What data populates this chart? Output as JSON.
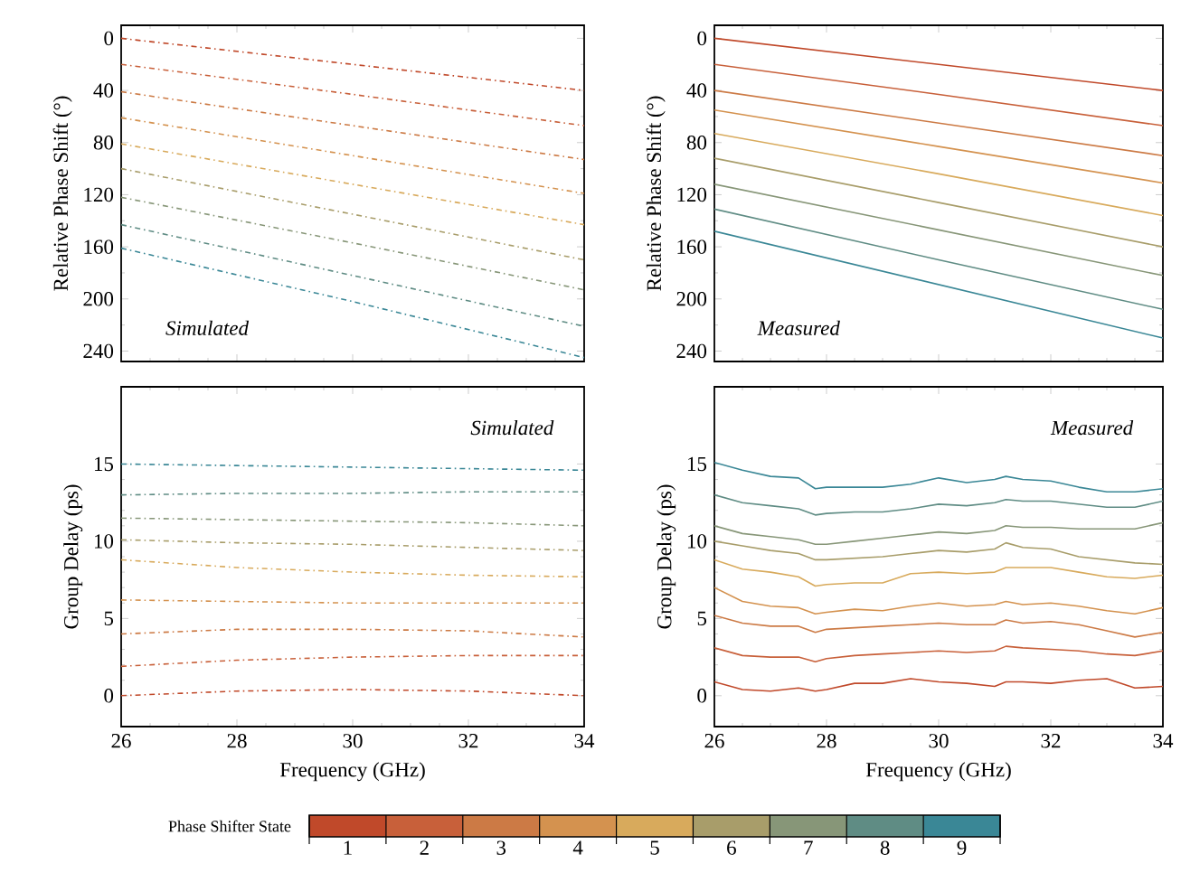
{
  "chart_data": [
    {
      "type": "line",
      "ylabel": "Relative Phase Shift (°)",
      "x": [
        26,
        30,
        34
      ],
      "xlim": [
        26,
        34
      ],
      "ylim": [
        248,
        -10
      ],
      "xticks": [
        26,
        28,
        30,
        32,
        34
      ],
      "yticks": [
        0,
        40,
        80,
        120,
        160,
        200,
        240
      ],
      "tick_labels": "y",
      "line_style": "dashed",
      "annotations": [
        "Simulated"
      ],
      "series": [
        {
          "color": "#c0492a",
          "values": [
            0,
            20,
            40
          ]
        },
        {
          "color": "#c8603a",
          "values": [
            20,
            43,
            67
          ]
        },
        {
          "color": "#cc7a45",
          "values": [
            41,
            67,
            93
          ]
        },
        {
          "color": "#d4924f",
          "values": [
            61,
            90,
            119
          ]
        },
        {
          "color": "#d8aa5c",
          "values": [
            81,
            112,
            143
          ]
        },
        {
          "color": "#a89d6a",
          "values": [
            100,
            135,
            170
          ]
        },
        {
          "color": "#879678",
          "values": [
            122,
            157,
            193
          ]
        },
        {
          "color": "#5f8c84",
          "values": [
            143,
            182,
            221
          ]
        },
        {
          "color": "#3a8796",
          "values": [
            161,
            202,
            245
          ]
        }
      ]
    },
    {
      "type": "line",
      "ylabel": "Relative Phase Shift (°)",
      "x": [
        26,
        30,
        34
      ],
      "xlim": [
        26,
        34
      ],
      "ylim": [
        248,
        -10
      ],
      "xticks": [
        26,
        28,
        30,
        32,
        34
      ],
      "yticks": [
        0,
        40,
        80,
        120,
        160,
        200,
        240
      ],
      "tick_labels": "y",
      "line_style": "solid",
      "annotations": [
        "Measured"
      ],
      "series": [
        {
          "color": "#c0492a",
          "values": [
            0,
            20,
            40
          ]
        },
        {
          "color": "#c8603a",
          "values": [
            20,
            43,
            67
          ]
        },
        {
          "color": "#cc7a45",
          "values": [
            40,
            65,
            90
          ]
        },
        {
          "color": "#d4924f",
          "values": [
            55,
            83,
            111
          ]
        },
        {
          "color": "#d8aa5c",
          "values": [
            73,
            104,
            136
          ]
        },
        {
          "color": "#a89d6a",
          "values": [
            92,
            126,
            160
          ]
        },
        {
          "color": "#879678",
          "values": [
            112,
            147,
            182
          ]
        },
        {
          "color": "#5f8c84",
          "values": [
            131,
            170,
            208
          ]
        },
        {
          "color": "#3a8796",
          "values": [
            148,
            189,
            230
          ]
        }
      ]
    },
    {
      "type": "line",
      "ylabel": "Group Delay (ps)",
      "xlabel": "Frequency (GHz)",
      "x": [
        26,
        28,
        30,
        32,
        34
      ],
      "xlim": [
        26,
        34
      ],
      "ylim": [
        -2,
        20
      ],
      "xticks": [
        26,
        28,
        30,
        32,
        34
      ],
      "yticks": [
        0,
        5,
        10,
        15
      ],
      "line_style": "dashed",
      "annotations": [
        "Simulated"
      ],
      "legend": "bottom",
      "legend_title": "Phase Shifter State",
      "series": [
        {
          "name": "1",
          "color": "#c0492a",
          "values": [
            0,
            0.3,
            0.4,
            0.3,
            0
          ]
        },
        {
          "name": "2",
          "color": "#c8603a",
          "values": [
            1.9,
            2.3,
            2.5,
            2.6,
            2.6
          ]
        },
        {
          "name": "3",
          "color": "#cc7a45",
          "values": [
            4.0,
            4.3,
            4.3,
            4.2,
            3.8
          ]
        },
        {
          "name": "4",
          "color": "#d4924f",
          "values": [
            6.2,
            6.1,
            6.0,
            6.0,
            6.0
          ]
        },
        {
          "name": "5",
          "color": "#d8aa5c",
          "values": [
            8.8,
            8.3,
            8.0,
            7.8,
            7.7
          ]
        },
        {
          "name": "6",
          "color": "#a89d6a",
          "values": [
            10.1,
            9.9,
            9.8,
            9.6,
            9.4
          ]
        },
        {
          "name": "7",
          "color": "#879678",
          "values": [
            11.5,
            11.4,
            11.3,
            11.2,
            11.0
          ]
        },
        {
          "name": "8",
          "color": "#5f8c84",
          "values": [
            13.0,
            13.1,
            13.1,
            13.2,
            13.2
          ]
        },
        {
          "name": "9",
          "color": "#3a8796",
          "values": [
            15.0,
            14.9,
            14.8,
            14.7,
            14.6
          ]
        }
      ]
    },
    {
      "type": "line",
      "ylabel": "Group Delay (ps)",
      "xlabel": "Frequency (GHz)",
      "x": [
        26,
        26.5,
        27,
        27.5,
        27.8,
        28,
        28.5,
        29,
        29.5,
        30,
        30.5,
        31,
        31.2,
        31.5,
        32,
        32.5,
        33,
        33.5,
        34
      ],
      "xlim": [
        26,
        34
      ],
      "ylim": [
        -2,
        20
      ],
      "xticks": [
        26,
        28,
        30,
        32,
        34
      ],
      "yticks": [
        0,
        5,
        10,
        15
      ],
      "line_style": "solid",
      "annotations": [
        "Measured"
      ],
      "series": [
        {
          "color": "#c0492a",
          "values": [
            0.9,
            0.4,
            0.3,
            0.5,
            0.3,
            0.4,
            0.8,
            0.8,
            1.1,
            0.9,
            0.8,
            0.6,
            0.9,
            0.9,
            0.8,
            1.0,
            1.1,
            0.5,
            0.6
          ]
        },
        {
          "color": "#c8603a",
          "values": [
            3.1,
            2.6,
            2.5,
            2.5,
            2.2,
            2.4,
            2.6,
            2.7,
            2.8,
            2.9,
            2.8,
            2.9,
            3.2,
            3.1,
            3.0,
            2.9,
            2.7,
            2.6,
            2.9
          ]
        },
        {
          "color": "#cc7a45",
          "values": [
            5.2,
            4.7,
            4.5,
            4.5,
            4.1,
            4.3,
            4.4,
            4.5,
            4.6,
            4.7,
            4.6,
            4.6,
            4.9,
            4.7,
            4.8,
            4.6,
            4.2,
            3.8,
            4.1
          ]
        },
        {
          "color": "#d4924f",
          "values": [
            7.0,
            6.1,
            5.8,
            5.7,
            5.3,
            5.4,
            5.6,
            5.5,
            5.8,
            6.0,
            5.8,
            5.9,
            6.1,
            5.9,
            6.0,
            5.8,
            5.5,
            5.3,
            5.7
          ]
        },
        {
          "color": "#d8aa5c",
          "values": [
            8.8,
            8.2,
            8.0,
            7.7,
            7.1,
            7.2,
            7.3,
            7.3,
            7.9,
            8.0,
            7.9,
            8.0,
            8.3,
            8.3,
            8.3,
            8.0,
            7.7,
            7.6,
            7.8
          ]
        },
        {
          "color": "#a89d6a",
          "values": [
            10.0,
            9.7,
            9.4,
            9.2,
            8.8,
            8.8,
            8.9,
            9.0,
            9.2,
            9.4,
            9.3,
            9.5,
            9.9,
            9.6,
            9.5,
            9.0,
            8.8,
            8.6,
            8.5
          ]
        },
        {
          "color": "#879678",
          "values": [
            11.0,
            10.5,
            10.3,
            10.1,
            9.8,
            9.8,
            10.0,
            10.2,
            10.4,
            10.6,
            10.5,
            10.7,
            11.0,
            10.9,
            10.9,
            10.8,
            10.8,
            10.8,
            11.2
          ]
        },
        {
          "color": "#5f8c84",
          "values": [
            13.0,
            12.5,
            12.3,
            12.1,
            11.7,
            11.8,
            11.9,
            11.9,
            12.1,
            12.4,
            12.3,
            12.5,
            12.7,
            12.6,
            12.6,
            12.4,
            12.2,
            12.2,
            12.6
          ]
        },
        {
          "color": "#3a8796",
          "values": [
            15.1,
            14.6,
            14.2,
            14.1,
            13.4,
            13.5,
            13.5,
            13.5,
            13.7,
            14.1,
            13.8,
            14.0,
            14.2,
            14.0,
            13.9,
            13.5,
            13.2,
            13.2,
            13.4
          ]
        }
      ]
    }
  ]
}
